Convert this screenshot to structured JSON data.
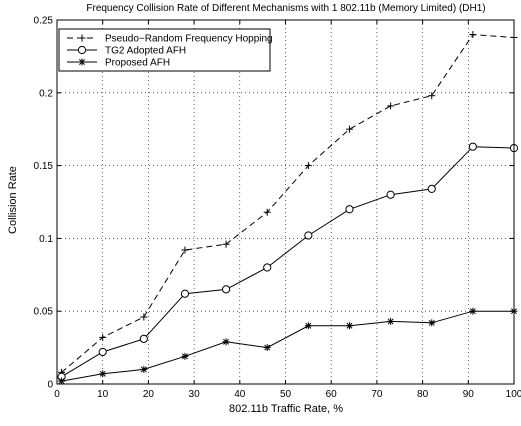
{
  "chart_data": {
    "type": "line",
    "title": "Frequency Collision Rate of Different Mechanisms with 1 802.11b (Memory Limited) (DH1)",
    "xlabel": "802.11b Traffic Rate, %",
    "ylabel": "Collision Rate",
    "xlim": [
      0,
      100
    ],
    "ylim": [
      0,
      0.25
    ],
    "x_ticks": [
      0,
      10,
      20,
      30,
      40,
      50,
      60,
      70,
      80,
      90,
      100
    ],
    "y_ticks": [
      0,
      0.05,
      0.1,
      0.15,
      0.2,
      0.25
    ],
    "x_tick_labels": [
      "0",
      "10",
      "20",
      "30",
      "40",
      "50",
      "60",
      "70",
      "80",
      "90",
      "100"
    ],
    "y_tick_labels": [
      "0",
      "0.05",
      "0.1",
      "0.15",
      "0.2",
      "0.25"
    ],
    "grid": true,
    "legend_position": "top-left",
    "x": [
      1,
      10,
      19,
      28,
      37,
      46,
      55,
      64,
      73,
      82,
      91,
      100
    ],
    "series": [
      {
        "name": "Pseudo−Random Frequency Hopping",
        "marker": "plus",
        "line_style": "dashed",
        "color": "#000000",
        "values": [
          0.008,
          0.032,
          0.046,
          0.092,
          0.096,
          0.118,
          0.15,
          0.175,
          0.191,
          0.198,
          0.24,
          0.238
        ]
      },
      {
        "name": "TG2 Adopted AFH",
        "marker": "circle",
        "line_style": "solid",
        "color": "#000000",
        "values": [
          0.005,
          0.022,
          0.031,
          0.062,
          0.065,
          0.08,
          0.102,
          0.12,
          0.13,
          0.134,
          0.163,
          0.162
        ]
      },
      {
        "name": "Proposed AFH",
        "marker": "asterisk",
        "line_style": "solid",
        "color": "#000000",
        "values": [
          0.002,
          0.007,
          0.01,
          0.019,
          0.029,
          0.025,
          0.04,
          0.04,
          0.043,
          0.042,
          0.05,
          0.05
        ]
      }
    ]
  }
}
